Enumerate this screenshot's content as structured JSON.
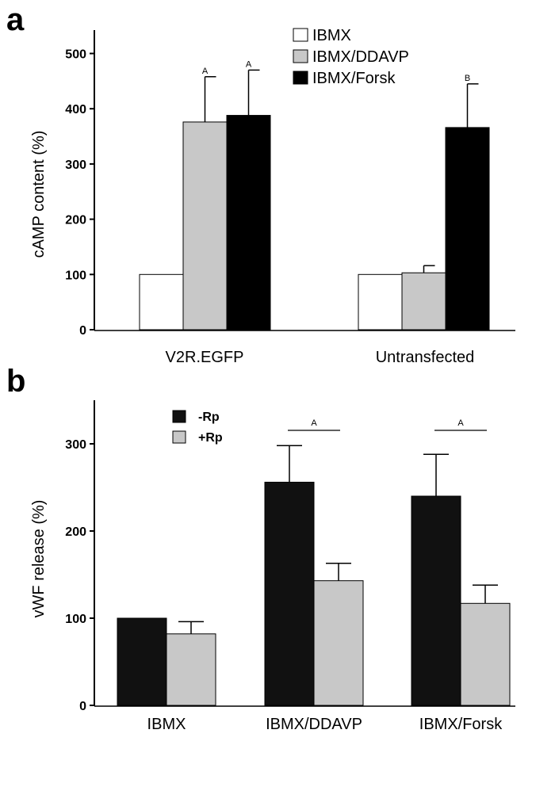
{
  "chart_data": [
    {
      "panel_label": "a",
      "type": "bar",
      "ylabel": "cAMP content (%)",
      "ylim": [
        0,
        540
      ],
      "yticks": [
        0,
        100,
        200,
        300,
        400,
        500
      ],
      "categories": [
        "V2R.EGFP",
        "Untransfected"
      ],
      "legend_position": "top-right",
      "series": [
        {
          "name": "IBMX",
          "color": "#ffffff",
          "values": [
            100,
            100
          ],
          "errors": [
            0,
            0
          ],
          "sig": [
            "",
            ""
          ]
        },
        {
          "name": "IBMX/DDAVP",
          "color": "#c8c8c8",
          "values": [
            376,
            103
          ],
          "errors": [
            82,
            13
          ],
          "sig": [
            "A",
            ""
          ]
        },
        {
          "name": "IBMX/Forsk",
          "color": "#000000",
          "values": [
            388,
            366
          ],
          "errors": [
            82,
            79
          ],
          "sig": [
            "A",
            "B"
          ]
        }
      ]
    },
    {
      "panel_label": "b",
      "type": "bar",
      "ylabel": "vWF release (%)",
      "ylim": [
        0,
        350
      ],
      "yticks": [
        0,
        100,
        200,
        300
      ],
      "categories": [
        "IBMX",
        "IBMX/DDAVP",
        "IBMX/Forsk"
      ],
      "legend_position": "top-left",
      "series": [
        {
          "name": "-Rp",
          "color": "#111111",
          "values": [
            100,
            256,
            240
          ],
          "errors": [
            0,
            42,
            48
          ]
        },
        {
          "name": "+Rp",
          "color": "#c8c8c8",
          "values": [
            82,
            143,
            117
          ],
          "errors": [
            14,
            20,
            21
          ]
        }
      ],
      "significance": [
        {
          "category": 1,
          "label": "A"
        },
        {
          "category": 2,
          "label": "A"
        }
      ]
    }
  ]
}
